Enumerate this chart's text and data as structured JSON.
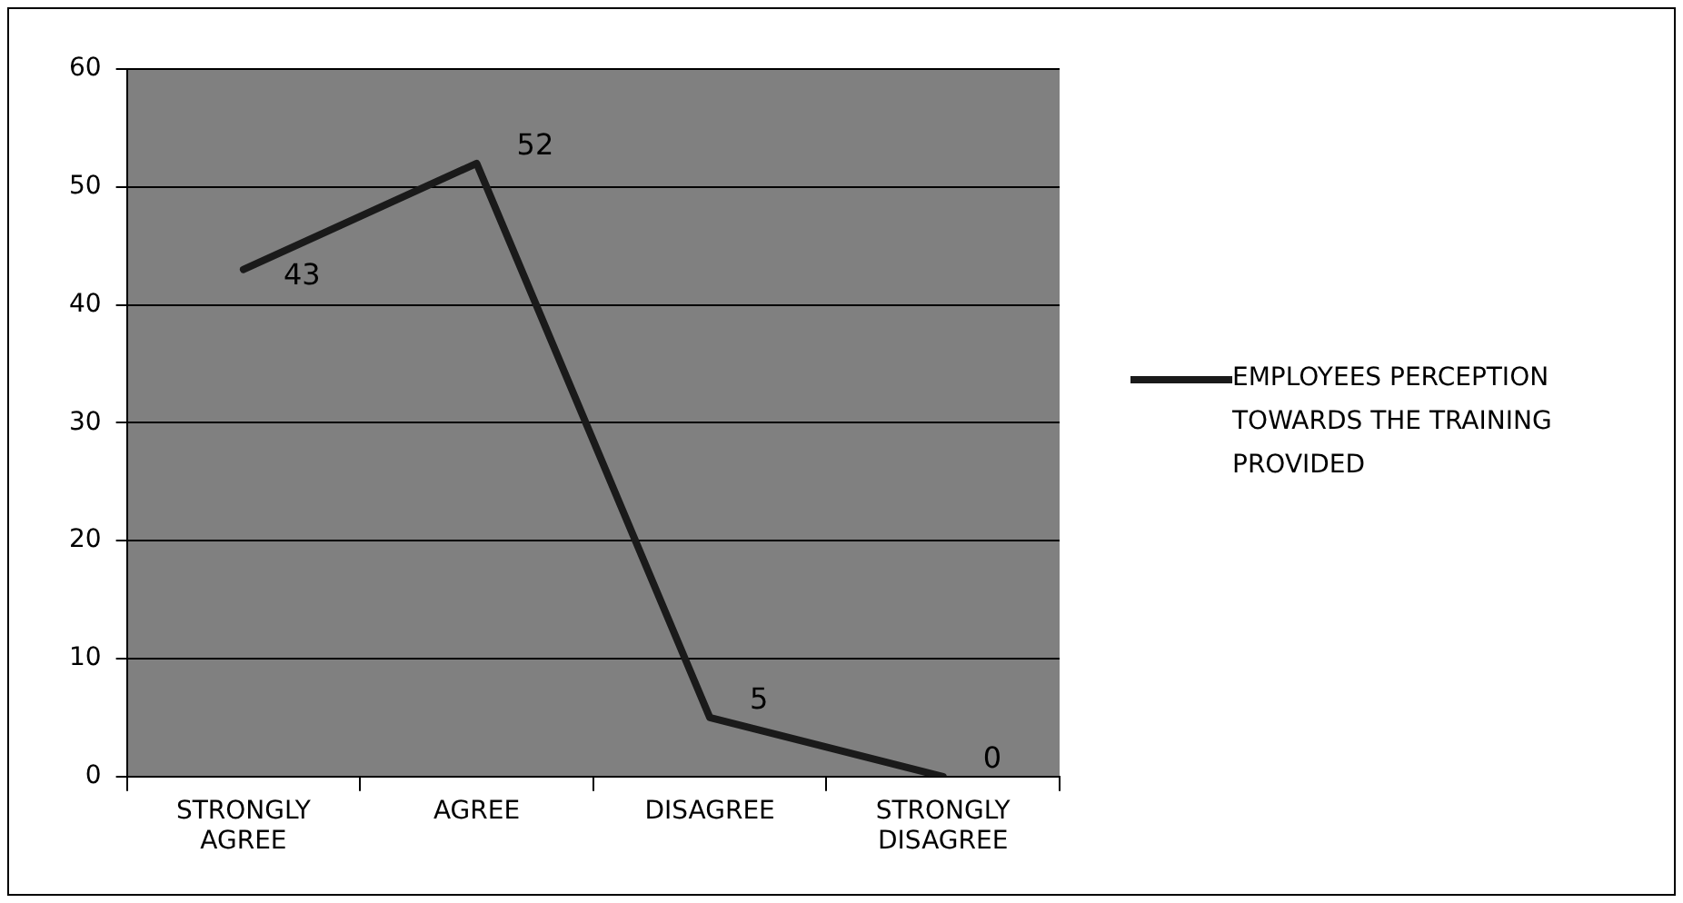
{
  "chart_data": {
    "type": "line",
    "categories": [
      "STRONGLY AGREE",
      "AGREE",
      "DISAGREE",
      "STRONGLY DISAGREE"
    ],
    "series": [
      {
        "name": "EMPLOYEES PERCEPTION TOWARDS THE TRAINING PROVIDED",
        "color": "#1a1a1a",
        "values": [
          43,
          52,
          5,
          0
        ]
      }
    ],
    "ylim": [
      0,
      60
    ],
    "yticks": [
      0,
      10,
      20,
      30,
      40,
      50,
      60
    ],
    "grid": "y",
    "legend": "right",
    "data_labels": true,
    "marker": "none",
    "line_style": "solid"
  }
}
